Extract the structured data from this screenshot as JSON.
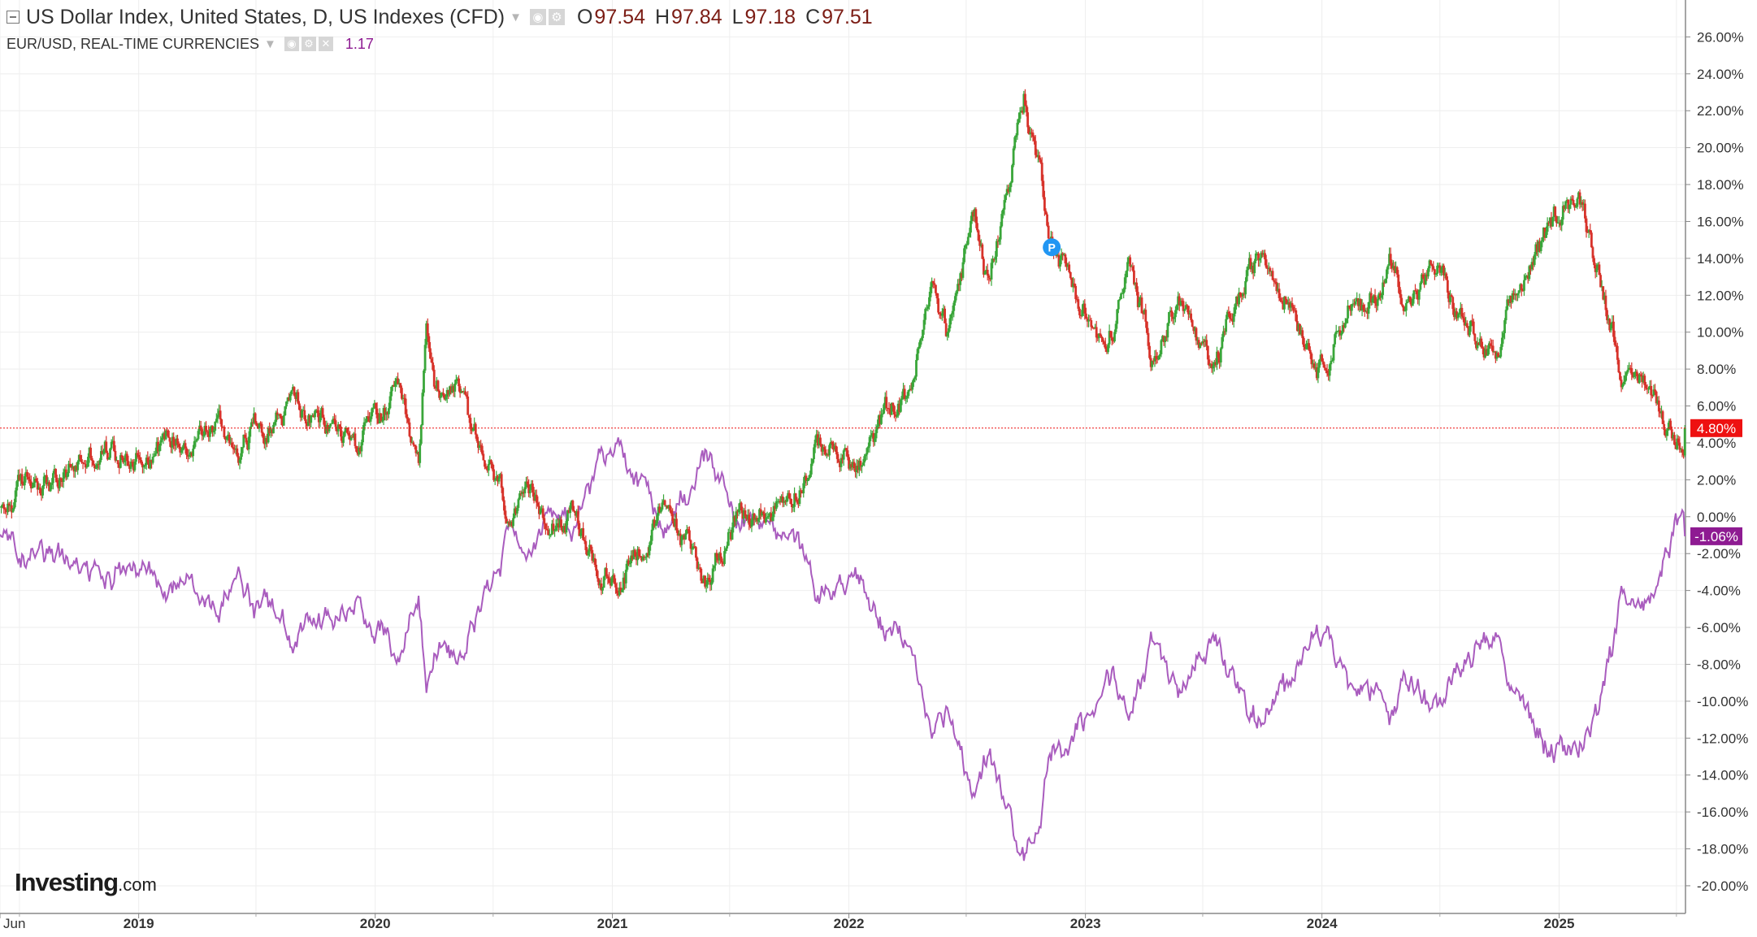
{
  "legend": {
    "primary_title": "US Dollar Index, United States, D, US Indexes (CFD)",
    "ohlc": [
      {
        "key": "O",
        "value": "97.54"
      },
      {
        "key": "H",
        "value": "97.84"
      },
      {
        "key": "L",
        "value": "97.18"
      },
      {
        "key": "C",
        "value": "97.51"
      }
    ],
    "secondary_title": "EUR/USD, REAL-TIME CURRENCIES",
    "secondary_value": "1.17"
  },
  "logo": {
    "brand": "Investing",
    "suffix": ".com"
  },
  "colors": {
    "up_candle": "#3aa63a",
    "down_candle": "#d7332b",
    "eurusd_line": "#a95cbe",
    "dxy_tag": "#ee1111",
    "eurusd_tag": "#8e1b92",
    "marker": "#2196f3",
    "grid": "#eeeeee"
  },
  "chart_data": {
    "type": "line",
    "y_axis": {
      "unit": "%",
      "ticks": [
        "26.00%",
        "24.00%",
        "22.00%",
        "20.00%",
        "18.00%",
        "16.00%",
        "14.00%",
        "12.00%",
        "10.00%",
        "8.00%",
        "6.00%",
        "4.00%",
        "2.00%",
        "0.00%",
        "-2.00%",
        "-4.00%",
        "-6.00%",
        "-8.00%",
        "-10.00%",
        "-12.00%",
        "-14.00%",
        "-16.00%",
        "-18.00%",
        "-20.00%"
      ],
      "range": [
        -21.5,
        28
      ]
    },
    "x_axis": {
      "ticks": [
        "Jun",
        "2019",
        "2020",
        "2021",
        "2022",
        "2023",
        "2024",
        "2025"
      ],
      "range": [
        "2018-06-01",
        "2025-07-15"
      ]
    },
    "grid": true,
    "series": [
      {
        "name": "US Dollar Index",
        "style": "candlestick",
        "last_value_label": "4.80%",
        "points": [
          [
            "2018-06-01",
            0.0
          ],
          [
            "2018-07-01",
            1.4
          ],
          [
            "2018-08-01",
            2.3
          ],
          [
            "2018-09-01",
            1.8
          ],
          [
            "2018-10-01",
            3.0
          ],
          [
            "2018-11-01",
            3.6
          ],
          [
            "2018-12-01",
            3.4
          ],
          [
            "2019-01-01",
            3.5
          ],
          [
            "2019-02-01",
            4.0
          ],
          [
            "2019-03-01",
            4.4
          ],
          [
            "2019-04-01",
            4.6
          ],
          [
            "2019-05-01",
            5.0
          ],
          [
            "2019-06-01",
            3.8
          ],
          [
            "2019-07-01",
            5.0
          ],
          [
            "2019-08-01",
            5.5
          ],
          [
            "2019-09-01",
            6.2
          ],
          [
            "2019-10-01",
            5.0
          ],
          [
            "2019-11-01",
            4.8
          ],
          [
            "2019-12-01",
            4.0
          ],
          [
            "2020-01-01",
            5.0
          ],
          [
            "2020-02-01",
            6.5
          ],
          [
            "2020-03-09",
            2.0
          ],
          [
            "2020-03-19",
            10.5
          ],
          [
            "2020-04-01",
            7.0
          ],
          [
            "2020-05-01",
            7.6
          ],
          [
            "2020-06-01",
            3.8
          ],
          [
            "2020-07-01",
            2.0
          ],
          [
            "2020-08-01",
            -0.2
          ],
          [
            "2020-09-01",
            0.3
          ],
          [
            "2020-10-01",
            0.5
          ],
          [
            "2020-11-01",
            0.0
          ],
          [
            "2020-12-01",
            -2.4
          ],
          [
            "2021-01-06",
            -3.8
          ],
          [
            "2021-02-01",
            -1.8
          ],
          [
            "2021-03-31",
            0.2
          ],
          [
            "2021-05-25",
            -3.4
          ],
          [
            "2021-06-30",
            -0.4
          ],
          [
            "2021-08-01",
            -0.2
          ],
          [
            "2021-09-01",
            0.2
          ],
          [
            "2021-10-01",
            1.5
          ],
          [
            "2021-11-24",
            4.0
          ],
          [
            "2021-12-31",
            3.0
          ],
          [
            "2022-01-15",
            2.5
          ],
          [
            "2022-02-01",
            3.4
          ],
          [
            "2022-03-07",
            6.0
          ],
          [
            "2022-04-01",
            6.5
          ],
          [
            "2022-05-13",
            12.5
          ],
          [
            "2022-06-01",
            10.0
          ],
          [
            "2022-07-14",
            16.2
          ],
          [
            "2022-08-01",
            13.0
          ],
          [
            "2022-08-29",
            17.0
          ],
          [
            "2022-09-28",
            22.8
          ],
          [
            "2022-10-15",
            20.0
          ],
          [
            "2022-11-10",
            15.5
          ],
          [
            "2022-12-01",
            13.5
          ],
          [
            "2023-01-15",
            10.0
          ],
          [
            "2023-02-01",
            8.6
          ],
          [
            "2023-03-08",
            13.2
          ],
          [
            "2023-04-14",
            9.2
          ],
          [
            "2023-05-31",
            11.8
          ],
          [
            "2023-07-14",
            7.0
          ],
          [
            "2023-08-15",
            11.0
          ],
          [
            "2023-10-03",
            14.4
          ],
          [
            "2023-11-15",
            12.0
          ],
          [
            "2023-12-28",
            8.3
          ],
          [
            "2024-02-14",
            11.8
          ],
          [
            "2024-03-08",
            10.5
          ],
          [
            "2024-04-16",
            13.8
          ],
          [
            "2024-05-15",
            11.8
          ],
          [
            "2024-06-26",
            13.4
          ],
          [
            "2024-07-31",
            10.8
          ],
          [
            "2024-09-27",
            8.0
          ],
          [
            "2024-10-15",
            10.5
          ],
          [
            "2024-11-15",
            13.5
          ],
          [
            "2024-12-15",
            15.0
          ],
          [
            "2025-01-13",
            17.8
          ],
          [
            "2025-02-03",
            16.8
          ],
          [
            "2025-03-01",
            14.0
          ],
          [
            "2025-03-20",
            11.0
          ],
          [
            "2025-04-21",
            6.5
          ],
          [
            "2025-05-12",
            7.5
          ],
          [
            "2025-06-10",
            5.5
          ],
          [
            "2025-07-01",
            4.2
          ],
          [
            "2025-07-15",
            4.8
          ]
        ]
      },
      {
        "name": "EUR/USD",
        "style": "line",
        "last_value_label": "-1.06%",
        "points": [
          [
            "2018-06-01",
            -0.5
          ],
          [
            "2018-07-01",
            -1.8
          ],
          [
            "2018-08-01",
            -2.5
          ],
          [
            "2018-09-01",
            -1.8
          ],
          [
            "2018-10-01",
            -2.8
          ],
          [
            "2018-11-01",
            -3.5
          ],
          [
            "2018-12-01",
            -3.2
          ],
          [
            "2019-01-01",
            -3.3
          ],
          [
            "2019-02-01",
            -3.8
          ],
          [
            "2019-03-01",
            -4.2
          ],
          [
            "2019-04-01",
            -4.5
          ],
          [
            "2019-05-01",
            -5.0
          ],
          [
            "2019-06-01",
            -3.6
          ],
          [
            "2019-07-01",
            -4.8
          ],
          [
            "2019-08-01",
            -5.5
          ],
          [
            "2019-09-01",
            -6.6
          ],
          [
            "2019-10-01",
            -5.2
          ],
          [
            "2019-11-01",
            -5.5
          ],
          [
            "2019-12-01",
            -4.8
          ],
          [
            "2020-01-01",
            -5.6
          ],
          [
            "2020-02-01",
            -7.0
          ],
          [
            "2020-03-09",
            -3.6
          ],
          [
            "2020-03-19",
            -9.5
          ],
          [
            "2020-04-01",
            -7.5
          ],
          [
            "2020-05-01",
            -8.0
          ],
          [
            "2020-06-01",
            -5.0
          ],
          [
            "2020-07-01",
            -3.0
          ],
          [
            "2020-08-01",
            -0.5
          ],
          [
            "2020-09-01",
            -0.8
          ],
          [
            "2020-10-01",
            -1.0
          ],
          [
            "2020-11-01",
            -0.4
          ],
          [
            "2020-12-01",
            2.2
          ],
          [
            "2021-01-06",
            3.8
          ],
          [
            "2021-02-01",
            1.8
          ],
          [
            "2021-03-31",
            -0.4
          ],
          [
            "2021-05-25",
            3.3
          ],
          [
            "2021-06-30",
            0.2
          ],
          [
            "2021-08-01",
            0.0
          ],
          [
            "2021-09-01",
            -0.5
          ],
          [
            "2021-10-01",
            -1.6
          ],
          [
            "2021-11-24",
            -4.4
          ],
          [
            "2021-12-31",
            -3.4
          ],
          [
            "2022-01-15",
            -3.0
          ],
          [
            "2022-02-01",
            -4.2
          ],
          [
            "2022-03-07",
            -6.3
          ],
          [
            "2022-04-01",
            -6.8
          ],
          [
            "2022-05-13",
            -11.5
          ],
          [
            "2022-06-01",
            -10.5
          ],
          [
            "2022-07-14",
            -14.8
          ],
          [
            "2022-08-01",
            -13.2
          ],
          [
            "2022-08-29",
            -15.5
          ],
          [
            "2022-09-28",
            -18.6
          ],
          [
            "2022-10-15",
            -17.5
          ],
          [
            "2022-11-10",
            -13.5
          ],
          [
            "2022-12-01",
            -12.5
          ],
          [
            "2023-01-15",
            -10.5
          ],
          [
            "2023-02-01",
            -8.2
          ],
          [
            "2023-03-08",
            -10.2
          ],
          [
            "2023-04-14",
            -7.4
          ],
          [
            "2023-05-31",
            -9.5
          ],
          [
            "2023-07-14",
            -5.5
          ],
          [
            "2023-08-15",
            -8.5
          ],
          [
            "2023-10-03",
            -11.4
          ],
          [
            "2023-11-15",
            -9.5
          ],
          [
            "2023-12-28",
            -6.6
          ],
          [
            "2024-02-14",
            -9.5
          ],
          [
            "2024-03-08",
            -8.5
          ],
          [
            "2024-04-16",
            -10.8
          ],
          [
            "2024-05-15",
            -9.2
          ],
          [
            "2024-06-26",
            -10.0
          ],
          [
            "2024-07-31",
            -8.2
          ],
          [
            "2024-09-27",
            -5.8
          ],
          [
            "2024-10-15",
            -8.0
          ],
          [
            "2024-11-15",
            -10.8
          ],
          [
            "2024-12-15",
            -12.0
          ],
          [
            "2025-01-13",
            -13.4
          ],
          [
            "2025-02-03",
            -12.2
          ],
          [
            "2025-03-01",
            -11.2
          ],
          [
            "2025-03-20",
            -8.0
          ],
          [
            "2025-04-21",
            -3.2
          ],
          [
            "2025-05-12",
            -5.0
          ],
          [
            "2025-06-10",
            -3.0
          ],
          [
            "2025-07-01",
            -0.4
          ],
          [
            "2025-07-15",
            -1.06
          ]
        ]
      }
    ],
    "reference_line": {
      "value": 4.8
    },
    "marker": {
      "label": "P",
      "date": "2022-11-10",
      "value": 14.6
    }
  }
}
